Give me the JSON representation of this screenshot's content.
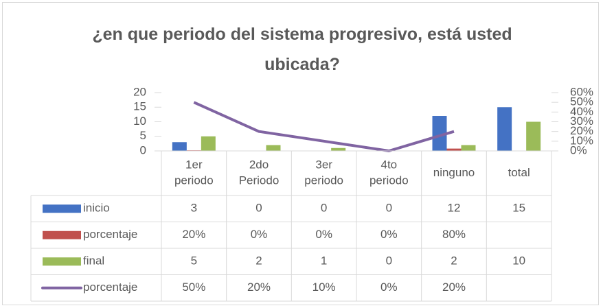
{
  "chart_data": {
    "type": "bar",
    "title": "¿en que periodo del sistema progresivo, está usted ubicada?",
    "categories": [
      "1er periodo",
      "2do Periodo",
      "3er periodo",
      "4to periodo",
      "ninguno",
      "total"
    ],
    "series": [
      {
        "name": "inicio",
        "color": "#4472c4",
        "type": "bar",
        "values": [
          3,
          0,
          0,
          0,
          12,
          15
        ]
      },
      {
        "name": "porcentaje",
        "color": "#c0504d",
        "type": "bar",
        "values": [
          0.2,
          0,
          0,
          0,
          0.8,
          null
        ],
        "value_labels": [
          "20%",
          "0%",
          "0%",
          "0%",
          "80%",
          null
        ]
      },
      {
        "name": "final",
        "color": "#9bbb59",
        "type": "bar",
        "values": [
          5,
          2,
          1,
          0,
          2,
          10
        ]
      },
      {
        "name": "porcentaje",
        "color": "#8064a2",
        "type": "line",
        "axis": "y2",
        "values": [
          50,
          20,
          10,
          0,
          20,
          null
        ],
        "value_labels": [
          "50%",
          "20%",
          "10%",
          "0%",
          "20%",
          null
        ]
      }
    ],
    "ylim": [
      0,
      20
    ],
    "yticks": [
      0,
      5,
      10,
      15,
      20
    ],
    "y2lim": [
      0,
      60
    ],
    "y2ticks": [
      {
        "value": 0,
        "label": "0%"
      },
      {
        "value": 10,
        "label": "10%"
      },
      {
        "value": 20,
        "label": "20%"
      },
      {
        "value": 30,
        "label": "30%"
      },
      {
        "value": 40,
        "label": "40%"
      },
      {
        "value": 50,
        "label": "50%"
      },
      {
        "value": 60,
        "label": "60%"
      }
    ],
    "data_table": true
  }
}
